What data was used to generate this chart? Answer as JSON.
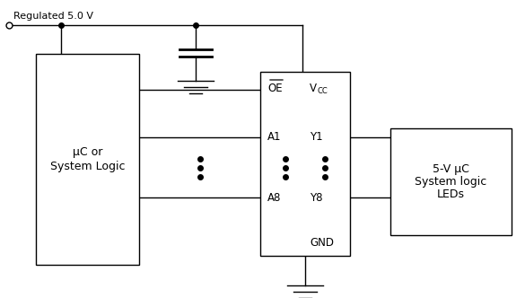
{
  "bg_color": "#ffffff",
  "line_color": "#000000",
  "uc_label_line1": "μC or",
  "uc_label_line2": "System Logic",
  "ic_label_OE": "OE",
  "ic_label_A1": "A1",
  "ic_label_A8": "A8",
  "ic_label_Y1": "Y1",
  "ic_label_Y8": "Y8",
  "ic_label_GND": "GND",
  "load_label_line1": "5-V μC",
  "load_label_line2": "System logic",
  "load_label_line3": "LEDs",
  "vcc_label": "Regulated 5.0 V",
  "figsize": [
    5.85,
    3.32
  ],
  "dpi": 100
}
